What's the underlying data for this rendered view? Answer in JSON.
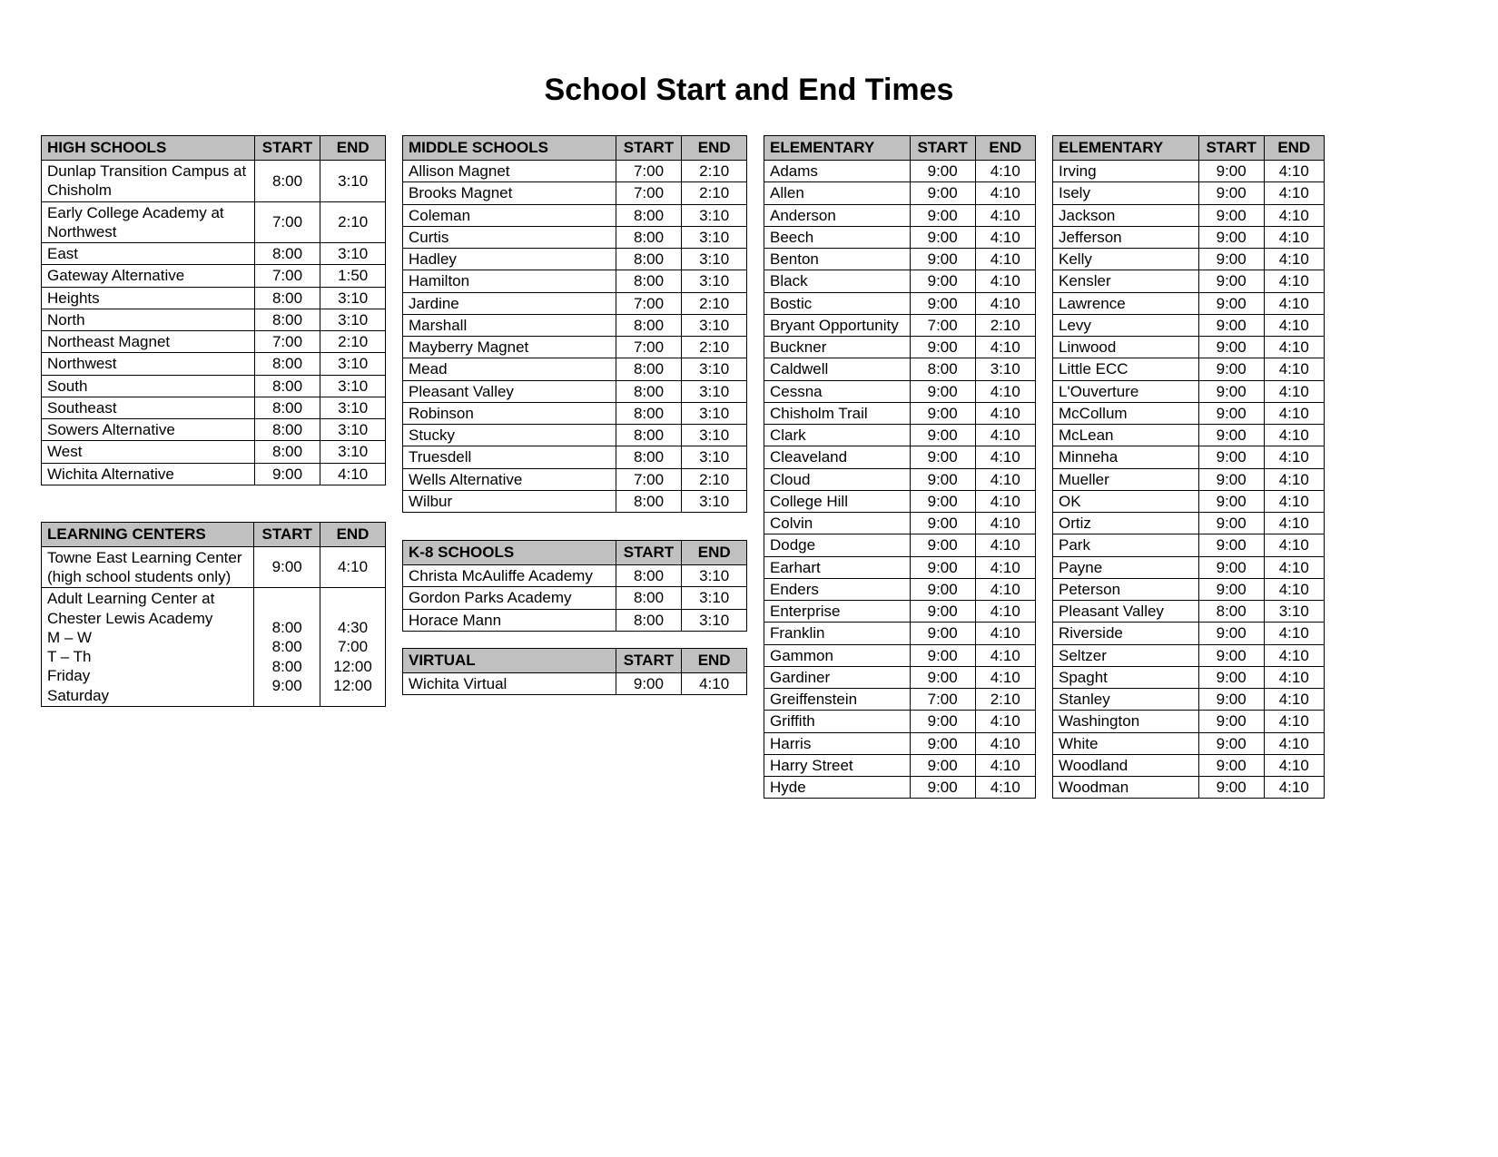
{
  "title": "School Start and End Times",
  "tables": {
    "high_schools": {
      "headers": [
        "HIGH SCHOOLS",
        "START",
        "END"
      ],
      "rows": [
        [
          "Dunlap Transition Campus at Chisholm",
          "8:00",
          "3:10"
        ],
        [
          "Early College Academy at Northwest",
          "7:00",
          "2:10"
        ],
        [
          "East",
          "8:00",
          "3:10"
        ],
        [
          "Gateway Alternative",
          "7:00",
          "1:50"
        ],
        [
          "Heights",
          "8:00",
          "3:10"
        ],
        [
          "North",
          "8:00",
          "3:10"
        ],
        [
          "Northeast Magnet",
          "7:00",
          "2:10"
        ],
        [
          "Northwest",
          "8:00",
          "3:10"
        ],
        [
          "South",
          "8:00",
          "3:10"
        ],
        [
          "Southeast",
          "8:00",
          "3:10"
        ],
        [
          "Sowers Alternative",
          "8:00",
          "3:10"
        ],
        [
          "West",
          "8:00",
          "3:10"
        ],
        [
          "Wichita Alternative",
          "9:00",
          "4:10"
        ]
      ]
    },
    "learning_centers": {
      "headers": [
        "LEARNING CENTERS",
        "START",
        "END"
      ],
      "rows": [
        [
          "Towne East Learning Center (high school students only)",
          "9:00",
          "4:10"
        ],
        [
          "Adult Learning Center at Chester Lewis Academy\nM – W\nT – Th\nFriday\nSaturday",
          "\n8:00\n8:00\n8:00\n9:00",
          "\n4:30\n7:00\n12:00\n12:00"
        ]
      ]
    },
    "middle_schools": {
      "headers": [
        "MIDDLE SCHOOLS",
        "START",
        "END"
      ],
      "rows": [
        [
          "Allison Magnet",
          "7:00",
          "2:10"
        ],
        [
          "Brooks Magnet",
          "7:00",
          "2:10"
        ],
        [
          "Coleman",
          "8:00",
          "3:10"
        ],
        [
          "Curtis",
          "8:00",
          "3:10"
        ],
        [
          "Hadley",
          "8:00",
          "3:10"
        ],
        [
          "Hamilton",
          "8:00",
          "3:10"
        ],
        [
          "Jardine",
          "7:00",
          "2:10"
        ],
        [
          "Marshall",
          "8:00",
          "3:10"
        ],
        [
          "Mayberry Magnet",
          "7:00",
          "2:10"
        ],
        [
          "Mead",
          "8:00",
          "3:10"
        ],
        [
          "Pleasant Valley",
          "8:00",
          "3:10"
        ],
        [
          "Robinson",
          "8:00",
          "3:10"
        ],
        [
          "Stucky",
          "8:00",
          "3:10"
        ],
        [
          "Truesdell",
          "8:00",
          "3:10"
        ],
        [
          "Wells Alternative",
          "7:00",
          "2:10"
        ],
        [
          "Wilbur",
          "8:00",
          "3:10"
        ]
      ]
    },
    "k8_schools": {
      "headers": [
        "K-8 SCHOOLS",
        "START",
        "END"
      ],
      "rows": [
        [
          "Christa McAuliffe Academy",
          "8:00",
          "3:10"
        ],
        [
          "Gordon Parks Academy",
          "8:00",
          "3:10"
        ],
        [
          "Horace Mann",
          "8:00",
          "3:10"
        ]
      ]
    },
    "virtual": {
      "headers": [
        "VIRTUAL",
        "START",
        "END"
      ],
      "rows": [
        [
          "Wichita Virtual",
          "9:00",
          "4:10"
        ]
      ]
    },
    "elementary1": {
      "headers": [
        "ELEMENTARY",
        "START",
        "END"
      ],
      "rows": [
        [
          "Adams",
          "9:00",
          "4:10"
        ],
        [
          "Allen",
          "9:00",
          "4:10"
        ],
        [
          "Anderson",
          "9:00",
          "4:10"
        ],
        [
          "Beech",
          "9:00",
          "4:10"
        ],
        [
          "Benton",
          "9:00",
          "4:10"
        ],
        [
          "Black",
          "9:00",
          "4:10"
        ],
        [
          "Bostic",
          "9:00",
          "4:10"
        ],
        [
          "Bryant Opportunity",
          "7:00",
          "2:10"
        ],
        [
          "Buckner",
          "9:00",
          "4:10"
        ],
        [
          "Caldwell",
          "8:00",
          "3:10"
        ],
        [
          "Cessna",
          "9:00",
          "4:10"
        ],
        [
          "Chisholm Trail",
          "9:00",
          "4:10"
        ],
        [
          "Clark",
          "9:00",
          "4:10"
        ],
        [
          "Cleaveland",
          "9:00",
          "4:10"
        ],
        [
          "Cloud",
          "9:00",
          "4:10"
        ],
        [
          "College Hill",
          "9:00",
          "4:10"
        ],
        [
          "Colvin",
          "9:00",
          "4:10"
        ],
        [
          "Dodge",
          "9:00",
          "4:10"
        ],
        [
          "Earhart",
          "9:00",
          "4:10"
        ],
        [
          "Enders",
          "9:00",
          "4:10"
        ],
        [
          "Enterprise",
          "9:00",
          "4:10"
        ],
        [
          "Franklin",
          "9:00",
          "4:10"
        ],
        [
          "Gammon",
          "9:00",
          "4:10"
        ],
        [
          "Gardiner",
          "9:00",
          "4:10"
        ],
        [
          "Greiffenstein",
          "7:00",
          "2:10"
        ],
        [
          "Griffith",
          "9:00",
          "4:10"
        ],
        [
          "Harris",
          "9:00",
          "4:10"
        ],
        [
          "Harry Street",
          "9:00",
          "4:10"
        ],
        [
          "Hyde",
          "9:00",
          "4:10"
        ]
      ]
    },
    "elementary2": {
      "headers": [
        "ELEMENTARY",
        "START",
        "END"
      ],
      "rows": [
        [
          "Irving",
          "9:00",
          "4:10"
        ],
        [
          "Isely",
          "9:00",
          "4:10"
        ],
        [
          "Jackson",
          "9:00",
          "4:10"
        ],
        [
          "Jefferson",
          "9:00",
          "4:10"
        ],
        [
          "Kelly",
          "9:00",
          "4:10"
        ],
        [
          "Kensler",
          "9:00",
          "4:10"
        ],
        [
          "Lawrence",
          "9:00",
          "4:10"
        ],
        [
          "Levy",
          "9:00",
          "4:10"
        ],
        [
          "Linwood",
          "9:00",
          "4:10"
        ],
        [
          "Little ECC",
          "9:00",
          "4:10"
        ],
        [
          "L'Ouverture",
          "9:00",
          "4:10"
        ],
        [
          "McCollum",
          "9:00",
          "4:10"
        ],
        [
          "McLean",
          "9:00",
          "4:10"
        ],
        [
          "Minneha",
          "9:00",
          "4:10"
        ],
        [
          "Mueller",
          "9:00",
          "4:10"
        ],
        [
          "OK",
          "9:00",
          "4:10"
        ],
        [
          "Ortiz",
          "9:00",
          "4:10"
        ],
        [
          "Park",
          "9:00",
          "4:10"
        ],
        [
          "Payne",
          "9:00",
          "4:10"
        ],
        [
          "Peterson",
          "9:00",
          "4:10"
        ],
        [
          "Pleasant Valley",
          "8:00",
          "3:10"
        ],
        [
          "Riverside",
          "9:00",
          "4:10"
        ],
        [
          "Seltzer",
          "9:00",
          "4:10"
        ],
        [
          "Spaght",
          "9:00",
          "4:10"
        ],
        [
          "Stanley",
          "9:00",
          "4:10"
        ],
        [
          "Washington",
          "9:00",
          "4:10"
        ],
        [
          "White",
          "9:00",
          "4:10"
        ],
        [
          "Woodland",
          "9:00",
          "4:10"
        ],
        [
          "Woodman",
          "9:00",
          "4:10"
        ]
      ]
    }
  },
  "style": {
    "header_bg": "#c0c0c0",
    "border_color": "#000000",
    "font_size_body": 17,
    "font_size_title": 34,
    "name_col_width_wide": 230,
    "name_col_width_narrow": 160,
    "time_col_width": 60
  }
}
